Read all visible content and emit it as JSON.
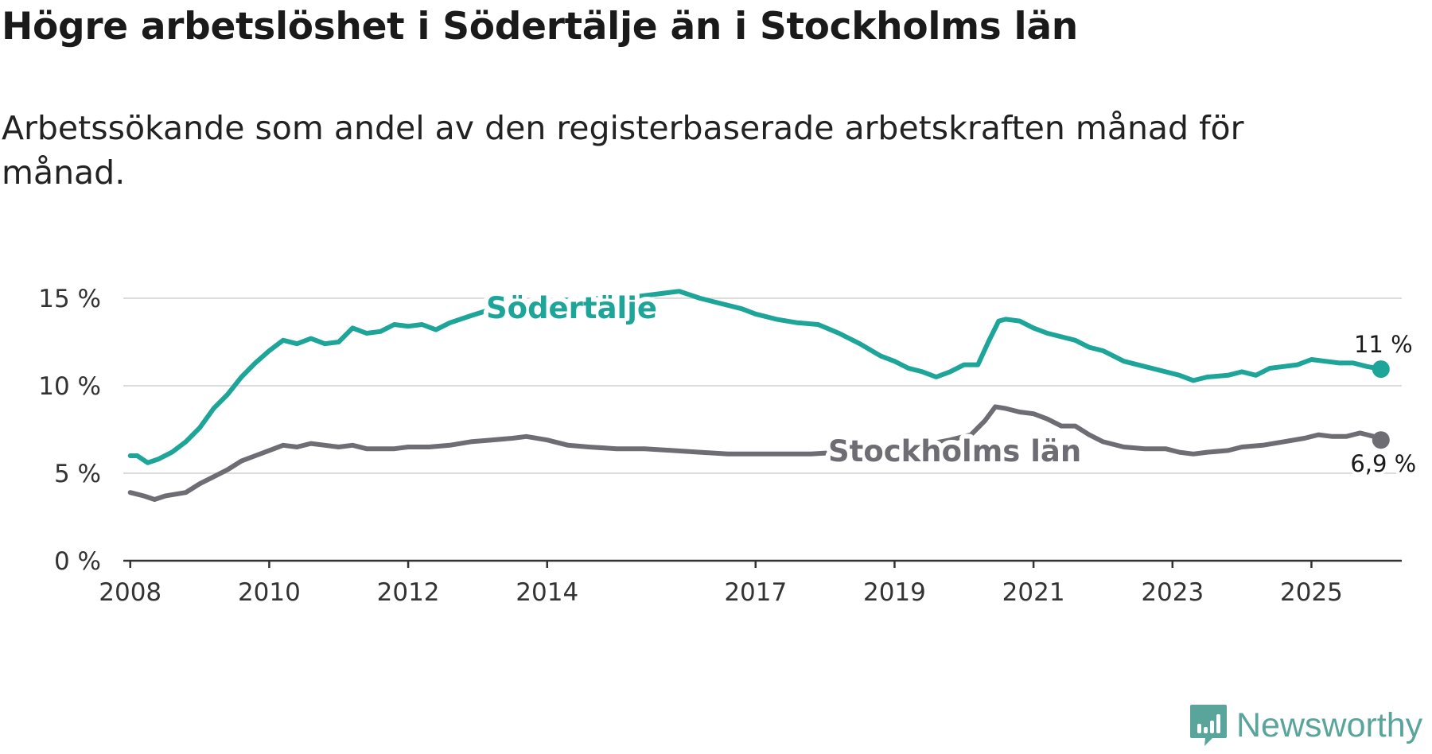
{
  "header": {
    "title": "Högre arbetslöshet i Södertälje än i Stockholms län",
    "subtitle": "Arbetssökande som andel av den registerbaserade arbetskraften månad för månad."
  },
  "brand": {
    "name": "Newsworthy",
    "color": "#5aa59b"
  },
  "chart_data": {
    "type": "line",
    "title": "Högre arbetslöshet i Södertälje än i Stockholms län",
    "subtitle": "Arbetssökande som andel av den registerbaserade arbetskraften månad för månad.",
    "xlabel": "",
    "ylabel": "",
    "xlim": [
      2007.9,
      2026.3
    ],
    "ylim": [
      0,
      15
    ],
    "grid": true,
    "y_ticks": [
      0,
      5,
      10,
      15
    ],
    "y_tick_labels": [
      "0 %",
      "5 %",
      "10 %",
      "15 %"
    ],
    "x_ticks": [
      2008,
      2010,
      2012,
      2014,
      2017,
      2019,
      2021,
      2023,
      2025
    ],
    "x_tick_labels": [
      "2008",
      "2010",
      "2012",
      "2014",
      "2017",
      "2019",
      "2021",
      "2023",
      "2025"
    ],
    "series": [
      {
        "name": "Södertälje",
        "label": "Södertälje",
        "color": "#1ea59a",
        "end_label": "11 %",
        "x": [
          2008.0,
          2008.1,
          2008.25,
          2008.4,
          2008.6,
          2008.8,
          2009.0,
          2009.2,
          2009.4,
          2009.6,
          2009.8,
          2010.0,
          2010.2,
          2010.4,
          2010.6,
          2010.8,
          2011.0,
          2011.2,
          2011.4,
          2011.6,
          2011.8,
          2012.0,
          2012.2,
          2012.4,
          2012.6,
          2012.9,
          2013.3,
          2013.8,
          2014.3,
          2014.8,
          2015.3,
          2015.7,
          2015.9,
          2016.2,
          2016.5,
          2016.8,
          2017.0,
          2017.3,
          2017.6,
          2017.9,
          2018.2,
          2018.5,
          2018.8,
          2019.0,
          2019.2,
          2019.4,
          2019.6,
          2019.8,
          2020.0,
          2020.2,
          2020.35,
          2020.5,
          2020.6,
          2020.8,
          2021.0,
          2021.2,
          2021.4,
          2021.6,
          2021.8,
          2022.0,
          2022.3,
          2022.6,
          2022.9,
          2023.1,
          2023.3,
          2023.5,
          2023.8,
          2024.0,
          2024.2,
          2024.4,
          2024.6,
          2024.8,
          2025.0,
          2025.2,
          2025.4,
          2025.6,
          2025.8,
          2026.0
        ],
        "values": [
          6.0,
          6.0,
          5.6,
          5.8,
          6.2,
          6.8,
          7.6,
          8.7,
          9.5,
          10.5,
          11.3,
          12.0,
          12.6,
          12.4,
          12.7,
          12.4,
          12.5,
          13.3,
          13.0,
          13.1,
          13.5,
          13.4,
          13.5,
          13.2,
          13.6,
          14.0,
          14.5,
          14.8,
          14.9,
          15.0,
          15.1,
          15.3,
          15.4,
          15.0,
          14.7,
          14.4,
          14.1,
          13.8,
          13.6,
          13.5,
          13.0,
          12.4,
          11.7,
          11.4,
          11.0,
          10.8,
          10.5,
          10.8,
          11.2,
          11.2,
          12.5,
          13.7,
          13.8,
          13.7,
          13.3,
          13.0,
          12.8,
          12.6,
          12.2,
          12.0,
          11.4,
          11.1,
          10.8,
          10.6,
          10.3,
          10.5,
          10.6,
          10.8,
          10.6,
          11.0,
          11.1,
          11.2,
          11.5,
          11.4,
          11.3,
          11.3,
          11.1,
          10.95
        ]
      },
      {
        "name": "Stockholms län",
        "label": "Stockholms län",
        "color": "#6f6d74",
        "end_label": "6,9 %",
        "x": [
          2008.0,
          2008.2,
          2008.35,
          2008.5,
          2008.8,
          2009.0,
          2009.2,
          2009.4,
          2009.6,
          2009.8,
          2010.0,
          2010.2,
          2010.4,
          2010.6,
          2010.8,
          2011.0,
          2011.2,
          2011.4,
          2011.6,
          2011.8,
          2012.0,
          2012.3,
          2012.6,
          2012.9,
          2013.2,
          2013.5,
          2013.7,
          2014.0,
          2014.3,
          2014.6,
          2015.0,
          2015.4,
          2015.8,
          2016.2,
          2016.6,
          2017.0,
          2017.4,
          2017.8,
          2018.2,
          2018.6,
          2019.0,
          2019.4,
          2019.8,
          2020.1,
          2020.3,
          2020.45,
          2020.6,
          2020.8,
          2021.0,
          2021.2,
          2021.4,
          2021.6,
          2021.8,
          2022.0,
          2022.3,
          2022.6,
          2022.9,
          2023.1,
          2023.3,
          2023.5,
          2023.8,
          2024.0,
          2024.3,
          2024.6,
          2024.9,
          2025.1,
          2025.3,
          2025.5,
          2025.7,
          2025.9,
          2026.0
        ],
        "values": [
          3.9,
          3.7,
          3.5,
          3.7,
          3.9,
          4.4,
          4.8,
          5.2,
          5.7,
          6.0,
          6.3,
          6.6,
          6.5,
          6.7,
          6.6,
          6.5,
          6.6,
          6.4,
          6.4,
          6.4,
          6.5,
          6.5,
          6.6,
          6.8,
          6.9,
          7.0,
          7.1,
          6.9,
          6.6,
          6.5,
          6.4,
          6.4,
          6.3,
          6.2,
          6.1,
          6.1,
          6.1,
          6.1,
          6.2,
          6.3,
          6.4,
          6.6,
          6.9,
          7.2,
          8.0,
          8.8,
          8.7,
          8.5,
          8.4,
          8.1,
          7.7,
          7.7,
          7.2,
          6.8,
          6.5,
          6.4,
          6.4,
          6.2,
          6.1,
          6.2,
          6.3,
          6.5,
          6.6,
          6.8,
          7.0,
          7.2,
          7.1,
          7.1,
          7.3,
          7.1,
          6.9
        ]
      }
    ]
  }
}
